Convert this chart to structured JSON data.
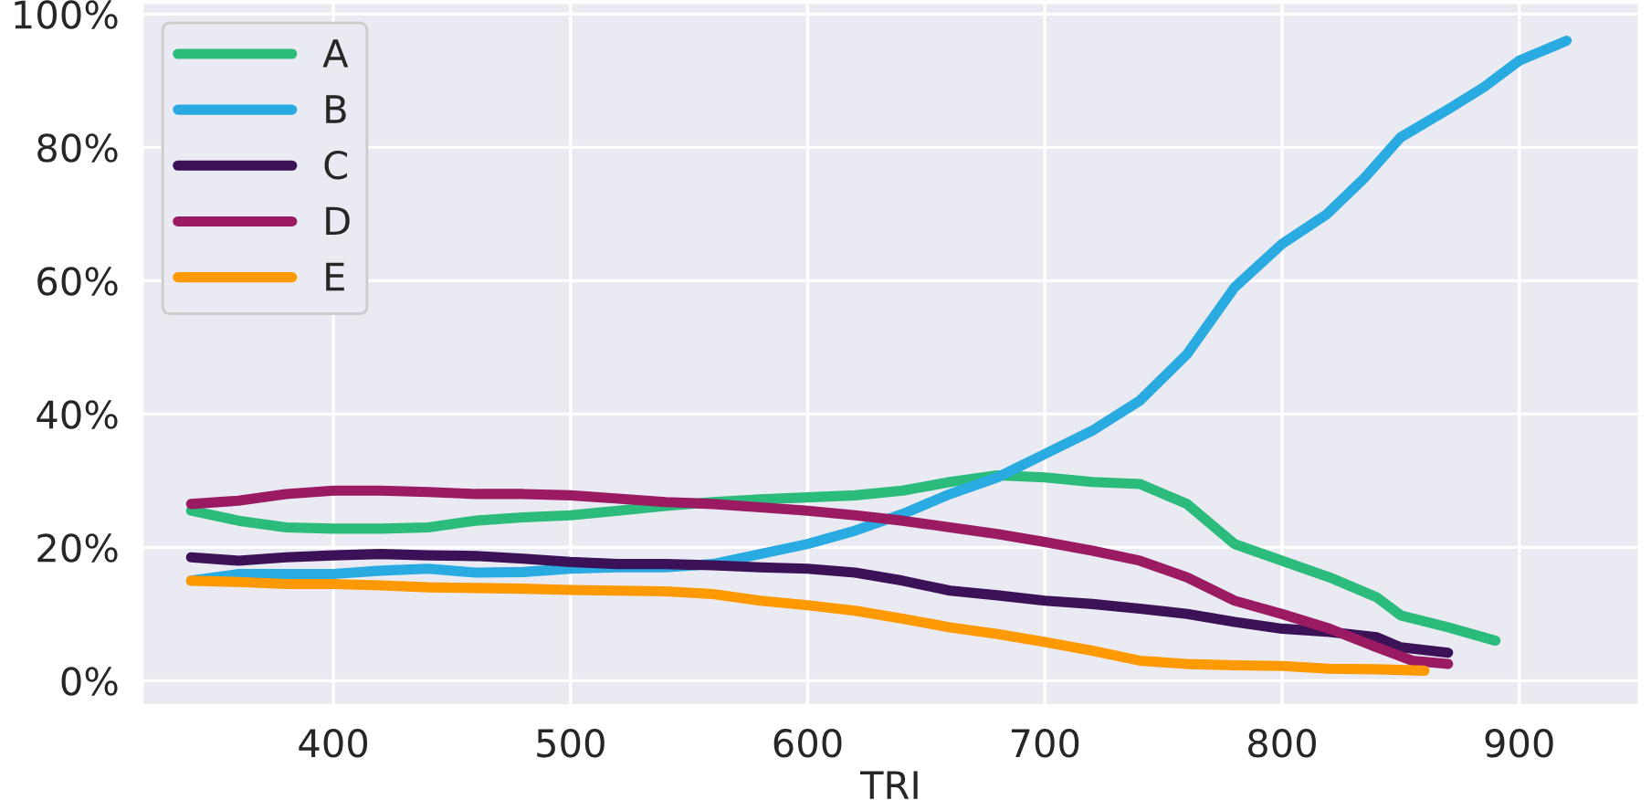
{
  "chart_data": {
    "type": "line",
    "xlabel": "TRI",
    "x": [
      340,
      360,
      380,
      400,
      420,
      440,
      460,
      480,
      500,
      520,
      540,
      560,
      580,
      600,
      620,
      640,
      660,
      680,
      700,
      720,
      740,
      760,
      780,
      800,
      820,
      840,
      850,
      870,
      890
    ],
    "series": [
      {
        "name": "A",
        "color": "#2bbb7b",
        "values": [
          25.5,
          24,
          23,
          22.8,
          22.8,
          23,
          24,
          24.5,
          24.8,
          25.5,
          26.2,
          26.8,
          27.2,
          27.5,
          27.8,
          28.5,
          29.8,
          30.8,
          30.5,
          29.8,
          29.5,
          26.5,
          20.5,
          18,
          15.5,
          12.5,
          9.8,
          8,
          6
        ]
      },
      {
        "name": "B",
        "color": "#29abe2",
        "x": [
          340,
          360,
          380,
          400,
          420,
          440,
          460,
          480,
          500,
          520,
          540,
          560,
          580,
          600,
          620,
          640,
          660,
          680,
          700,
          720,
          740,
          760,
          780,
          800,
          819,
          835,
          850,
          870,
          885,
          900,
          920
        ],
        "values": [
          15,
          16,
          16,
          16,
          16.5,
          16.8,
          16.2,
          16.3,
          16.8,
          17,
          17,
          17.5,
          19,
          20.5,
          22.5,
          25,
          28,
          30.5,
          34,
          37.5,
          42,
          49,
          59,
          65.5,
          70,
          75.5,
          81.5,
          85.7,
          89,
          93,
          96
        ]
      },
      {
        "name": "C",
        "color": "#3b1157",
        "x": [
          340,
          360,
          380,
          400,
          420,
          440,
          460,
          480,
          500,
          520,
          540,
          560,
          580,
          600,
          620,
          640,
          660,
          680,
          700,
          720,
          740,
          760,
          780,
          800,
          820,
          840,
          850,
          870
        ],
        "values": [
          18.5,
          18,
          18.5,
          18.8,
          19,
          18.8,
          18.7,
          18.3,
          17.8,
          17.5,
          17.5,
          17.3,
          17,
          16.8,
          16.2,
          15,
          13.5,
          12.8,
          12,
          11.5,
          10.8,
          10,
          8.8,
          7.8,
          7.3,
          6.5,
          5,
          4.2
        ]
      },
      {
        "name": "D",
        "color": "#9b1b63",
        "x": [
          340,
          360,
          380,
          400,
          420,
          440,
          460,
          480,
          500,
          520,
          540,
          560,
          580,
          600,
          620,
          640,
          660,
          680,
          700,
          720,
          740,
          760,
          780,
          800,
          820,
          840,
          855,
          870
        ],
        "values": [
          26.5,
          27,
          28,
          28.5,
          28.5,
          28.3,
          28,
          28,
          27.8,
          27.3,
          26.8,
          26.5,
          26,
          25.5,
          24.8,
          24,
          23,
          22,
          20.8,
          19.5,
          18,
          15.5,
          12,
          10,
          7.8,
          5,
          3,
          2.5
        ]
      },
      {
        "name": "E",
        "color": "#ff9900",
        "x": [
          340,
          360,
          380,
          400,
          420,
          440,
          460,
          480,
          500,
          520,
          540,
          560,
          580,
          600,
          620,
          640,
          660,
          680,
          700,
          720,
          740,
          760,
          780,
          800,
          820,
          840,
          860
        ],
        "values": [
          15,
          14.8,
          14.5,
          14.5,
          14.3,
          14,
          13.9,
          13.8,
          13.6,
          13.5,
          13.4,
          13,
          12,
          11.3,
          10.5,
          9.3,
          8,
          7,
          5.8,
          4.5,
          3,
          2.5,
          2.3,
          2.2,
          1.8,
          1.7,
          1.5
        ]
      }
    ],
    "xlim": [
      320,
      950
    ],
    "ylim": [
      -3.5,
      101.5
    ],
    "xticks": [
      400,
      500,
      600,
      700,
      800,
      900
    ],
    "yticks": [
      {
        "value": 0,
        "label": "0%"
      },
      {
        "value": 20,
        "label": "20%"
      },
      {
        "value": 40,
        "label": "40%"
      },
      {
        "value": 60,
        "label": "60%"
      },
      {
        "value": 80,
        "label": "80%"
      },
      {
        "value": 100,
        "label": "100%"
      }
    ],
    "grid": true,
    "legend": "top left",
    "line_style": "solid",
    "marker": "none"
  }
}
